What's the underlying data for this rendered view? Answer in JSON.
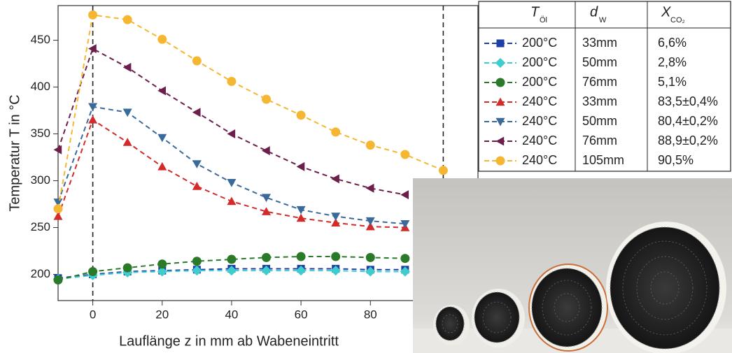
{
  "chart_data": {
    "type": "line",
    "ylabel": "Temperatur T in °C",
    "xlabel": "Lauflänge z in mm ab Wabeneintritt",
    "xlim": [
      -10,
      111
    ],
    "xticks": [
      0,
      20,
      40,
      60,
      80
    ],
    "ylim": [
      172,
      487
    ],
    "yticks": [
      200,
      250,
      300,
      350,
      400,
      450
    ],
    "vlines": [
      0,
      101
    ],
    "legend_header": [
      {
        "main": "T",
        "sub": "Öl"
      },
      {
        "main": "d",
        "sub": "W"
      },
      {
        "main": "X",
        "sub": "CO₂"
      }
    ],
    "series": [
      {
        "color": "#1f3fa8",
        "marker": "square",
        "T": "200°C",
        "d": "33mm",
        "X": "6,6%",
        "x": [
          -10,
          0,
          10,
          20,
          30,
          40,
          50,
          60,
          70,
          80,
          90
        ],
        "values": [
          196,
          200,
          203,
          204,
          205,
          206,
          206,
          206,
          206,
          205,
          205
        ]
      },
      {
        "color": "#3fcccc",
        "marker": "diamond",
        "T": "200°C",
        "d": "50mm",
        "X": "2,8%",
        "x": [
          -10,
          0,
          10,
          20,
          30,
          40,
          50,
          60,
          70,
          80,
          90
        ],
        "values": [
          195,
          199,
          202,
          203,
          204,
          204,
          204,
          204,
          204,
          203,
          203
        ]
      },
      {
        "color": "#2a7a2a",
        "marker": "circle",
        "T": "200°C",
        "d": "76mm",
        "X": "5,1%",
        "x": [
          -10,
          0,
          10,
          20,
          30,
          40,
          50,
          60,
          70,
          80,
          90
        ],
        "values": [
          194,
          203,
          207,
          211,
          214,
          216,
          218,
          219,
          219,
          218,
          217
        ]
      },
      {
        "color": "#d42a2a",
        "marker": "up",
        "T": "240°C",
        "d": "33mm",
        "X": "83,5±0,4%",
        "x": [
          -10,
          0,
          10,
          20,
          30,
          40,
          50,
          60,
          70,
          80,
          90
        ],
        "values": [
          262,
          365,
          341,
          315,
          294,
          278,
          267,
          260,
          255,
          251,
          250
        ]
      },
      {
        "color": "#3a6a9a",
        "marker": "down",
        "T": "240°C",
        "d": "50mm",
        "X": "80,4±0,2%",
        "x": [
          -10,
          0,
          10,
          20,
          30,
          40,
          50,
          60,
          70,
          80,
          90
        ],
        "values": [
          277,
          379,
          373,
          346,
          318,
          298,
          282,
          269,
          262,
          257,
          254
        ]
      },
      {
        "color": "#6b1f4a",
        "marker": "left",
        "T": "240°C",
        "d": "76mm",
        "X": "88,9±0,2%",
        "x": [
          -10,
          0,
          10,
          20,
          30,
          40,
          50,
          60,
          70,
          80,
          90
        ],
        "values": [
          333,
          441,
          421,
          396,
          373,
          350,
          332,
          315,
          302,
          292,
          285
        ]
      },
      {
        "color": "#f5b731",
        "marker": "circle",
        "T": "240°C",
        "d": "105mm",
        "X": "90,5%",
        "x": [
          -10,
          0,
          10,
          20,
          30,
          40,
          50,
          60,
          70,
          80,
          90,
          101
        ],
        "values": [
          270,
          477,
          472,
          451,
          428,
          406,
          387,
          370,
          352,
          338,
          328,
          311
        ]
      }
    ]
  }
}
